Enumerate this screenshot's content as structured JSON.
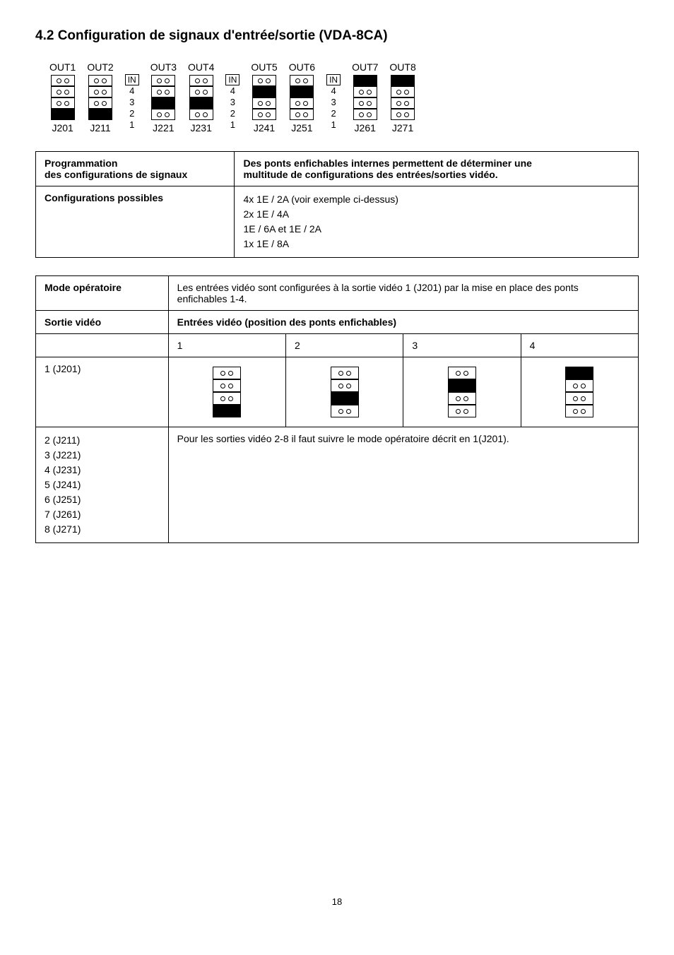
{
  "title": "4.2  Configuration de signaux d'entrée/sortie (VDA-8CA)",
  "diagram": {
    "out_labels": [
      "OUT1",
      "OUT2",
      "OUT3",
      "OUT4",
      "OUT5",
      "OUT6",
      "OUT7",
      "OUT8"
    ],
    "j_labels": [
      "J201",
      "J211",
      "J221",
      "J231",
      "J241",
      "J251",
      "J261",
      "J271"
    ],
    "in_label": "IN",
    "in_numbers": [
      "4",
      "3",
      "2",
      "1"
    ],
    "patterns": [
      [
        "open",
        "open",
        "open",
        "filled"
      ],
      [
        "open",
        "open",
        "open",
        "filled"
      ],
      [
        "open",
        "open",
        "filled",
        "open"
      ],
      [
        "open",
        "open",
        "filled",
        "open"
      ],
      [
        "open",
        "filled",
        "open",
        "open"
      ],
      [
        "open",
        "filled",
        "open",
        "open"
      ],
      [
        "filled",
        "open",
        "open",
        "open"
      ],
      [
        "filled",
        "open",
        "open",
        "open"
      ]
    ]
  },
  "table1": {
    "r1c1_line1": "Programmation",
    "r1c1_line2": "des configurations de signaux",
    "r1c2_line1": "Des ponts enfichables internes permettent de déterminer une",
    "r1c2_line2": "multitude de configurations des entrées/sorties vidéo.",
    "r2c1": "Configurations possibles",
    "r2c2_line1": "4x 1E / 2A  (voir exemple ci-dessus)",
    "r2c2_line2": "2x 1E / 4A",
    "r2c2_line3": "1E / 6A et 1E / 2A",
    "r2c2_line4": "1x 1E / 8A"
  },
  "table2": {
    "h1": "Mode opératoire",
    "h1_desc": "Les entrées vidéo sont configurées à la sortie vidéo 1 (J201) par la mise en place des ponts enfichables 1-4.",
    "h2": "Sortie vidéo",
    "h2_desc": "Entrées vidéo (position des ponts enfichables)",
    "cols": [
      "1",
      "2",
      "3",
      "4"
    ],
    "row_label": "1 (J201)",
    "row2_labels": [
      "2 (J211)",
      "3 (J221)",
      "4 (J231)",
      "5 (J241)",
      "6 (J251)",
      "7 (J261)",
      "8 (J271)"
    ],
    "row2_text": "Pour les sorties vidéo 2-8 il faut suivre le mode opératoire décrit en 1(J201).",
    "patterns": [
      [
        "open",
        "open",
        "open",
        "filled"
      ],
      [
        "open",
        "open",
        "filled",
        "open"
      ],
      [
        "open",
        "filled",
        "open",
        "open"
      ],
      [
        "filled",
        "open",
        "open",
        "open"
      ]
    ]
  },
  "page_num": "18"
}
